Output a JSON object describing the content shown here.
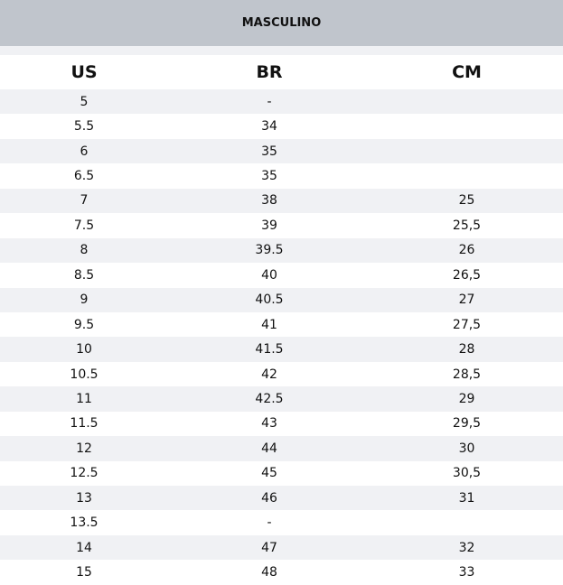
{
  "title": "MASCULINO",
  "headers": [
    "US",
    "BR",
    "CM"
  ],
  "rows": [
    [
      "5",
      "-",
      ""
    ],
    [
      "5.5",
      "34",
      ""
    ],
    [
      "6",
      "35",
      ""
    ],
    [
      "6.5",
      "35",
      ""
    ],
    [
      "7",
      "38",
      "25"
    ],
    [
      "7.5",
      "39",
      "25,5"
    ],
    [
      "8",
      "39.5",
      "26"
    ],
    [
      "8.5",
      "40",
      "26,5"
    ],
    [
      "9",
      "40.5",
      "27"
    ],
    [
      "9.5",
      "41",
      "27,5"
    ],
    [
      "10",
      "41.5",
      "28"
    ],
    [
      "10.5",
      "42",
      "28,5"
    ],
    [
      "11",
      "42.5",
      "29"
    ],
    [
      "11.5",
      "43",
      "29,5"
    ],
    [
      "12",
      "44",
      "30"
    ],
    [
      "12.5",
      "45",
      "30,5"
    ],
    [
      "13",
      "46",
      "31"
    ],
    [
      "13.5",
      "-",
      ""
    ],
    [
      "14",
      "47",
      "32"
    ],
    [
      "15",
      "48",
      "33"
    ]
  ]
}
